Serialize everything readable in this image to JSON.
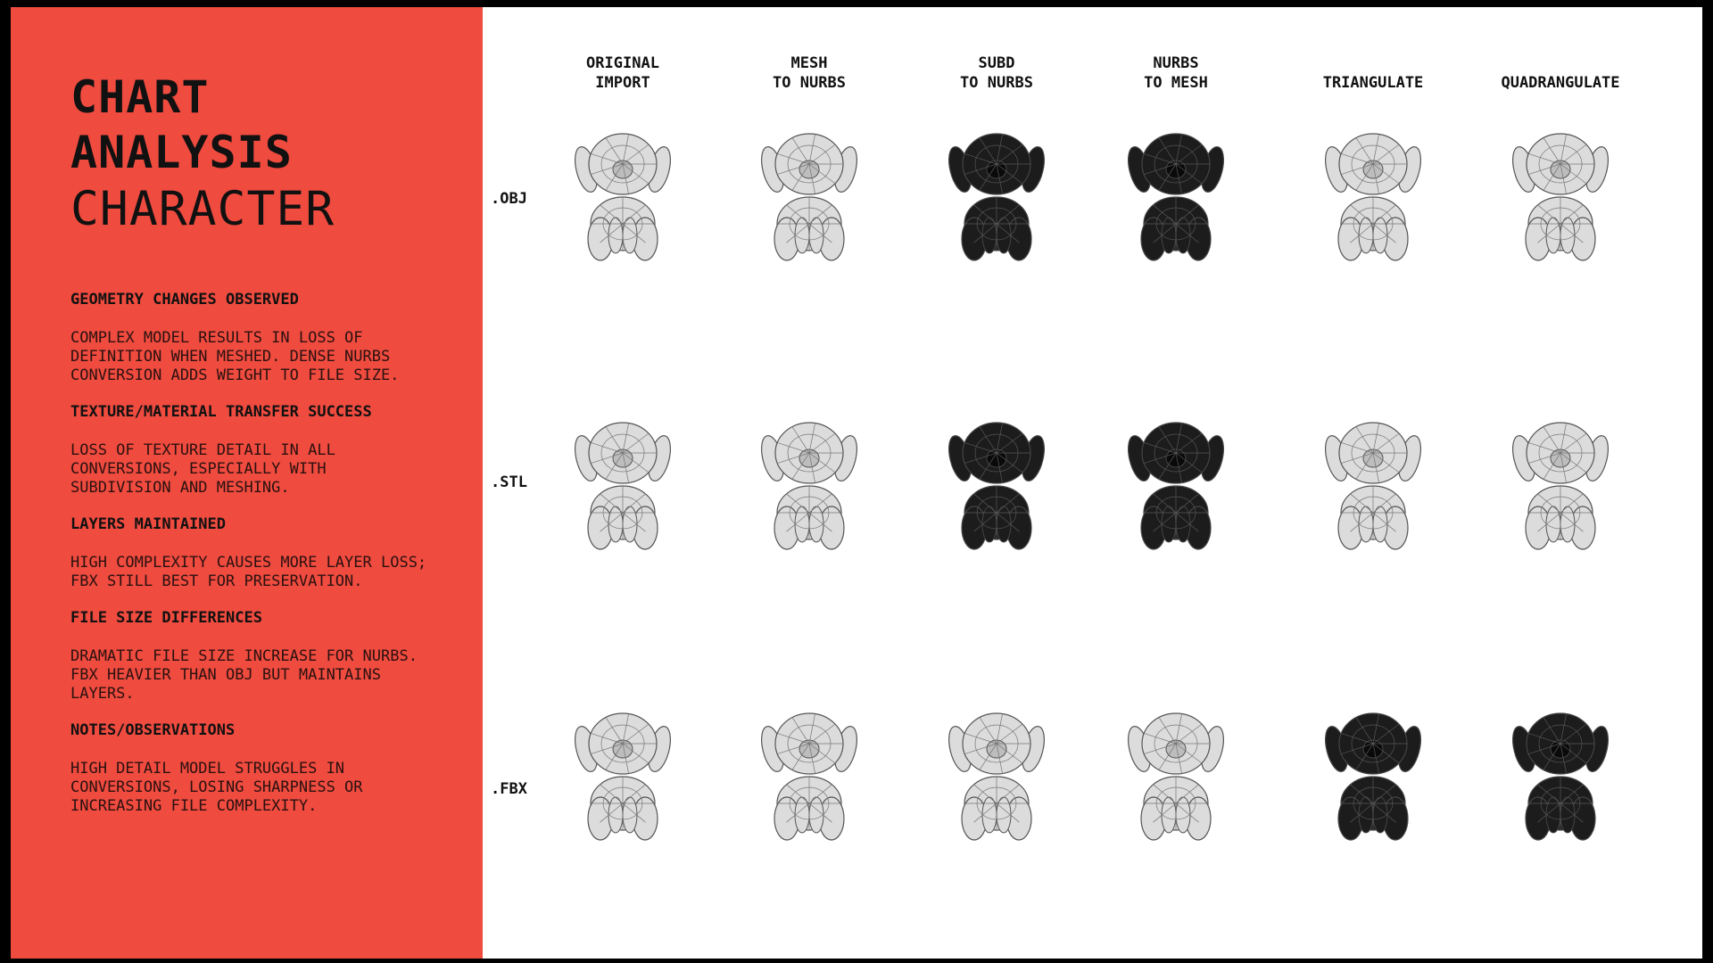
{
  "sidebar": {
    "title_line1": "CHART",
    "title_line2": "ANALYSIS",
    "subtitle": "CHARACTER",
    "sections": [
      {
        "heading": "GEOMETRY CHANGES OBSERVED",
        "body": "COMPLEX MODEL RESULTS IN LOSS OF DEFINITION WHEN MESHED. DENSE NURBS CONVERSION ADDS WEIGHT TO FILE SIZE."
      },
      {
        "heading": "TEXTURE/MATERIAL TRANSFER SUCCESS",
        "body": "LOSS OF TEXTURE DETAIL IN ALL CONVERSIONS, ESPECIALLY WITH SUBDIVISION AND MESHING."
      },
      {
        "heading": "LAYERS MAINTAINED",
        "body": "HIGH COMPLEXITY CAUSES MORE LAYER LOSS; FBX STILL BEST FOR PRESERVATION."
      },
      {
        "heading": "FILE SIZE DIFFERENCES",
        "body": "DRAMATIC FILE SIZE INCREASE FOR NURBS. FBX HEAVIER THAN OBJ BUT MAINTAINS LAYERS."
      },
      {
        "heading": "NOTES/OBSERVATIONS",
        "body": "HIGH DETAIL MODEL STRUGGLES IN CONVERSIONS, LOSING SHARPNESS OR INCREASING FILE COMPLEXITY."
      }
    ]
  },
  "columns": [
    {
      "line1": "ORIGINAL",
      "line2": "IMPORT"
    },
    {
      "line1": "MESH",
      "line2": "TO NURBS"
    },
    {
      "line1": "SUBD",
      "line2": "TO NURBS"
    },
    {
      "line1": "NURBS",
      "line2": "TO MESH"
    },
    {
      "line1": "",
      "line2": "TRIANGULATE"
    },
    {
      "line1": "",
      "line2": "QUADRANGULATE"
    }
  ],
  "rows": [
    {
      "label": ".OBJ",
      "cells": [
        "light",
        "light",
        "dark",
        "dark",
        "light",
        "light"
      ]
    },
    {
      "label": ".STL",
      "cells": [
        "light",
        "light",
        "dark",
        "dark",
        "light",
        "light"
      ]
    },
    {
      "label": ".FBX",
      "cells": [
        "light",
        "light",
        "light",
        "light",
        "dark",
        "dark"
      ]
    }
  ],
  "colors": {
    "accent": "#ef4b3f",
    "light_model": "#9a9a9a",
    "dark_model": "#1c1c1c"
  },
  "icons": {
    "model": "wireframe-dog-character-icon"
  }
}
